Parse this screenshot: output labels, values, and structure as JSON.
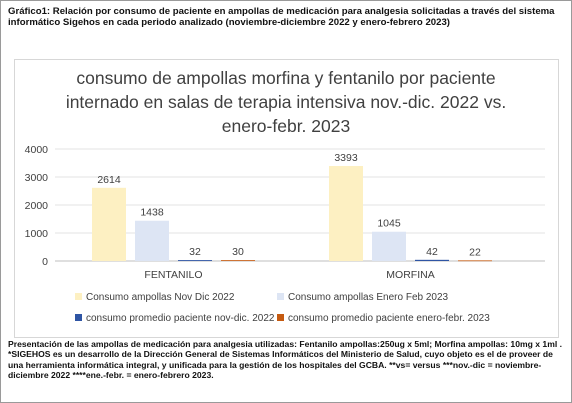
{
  "caption_top": "Gráfico1: Relación por consumo de paciente en ampollas de medicación para analgesia solicitadas a través del sistema informático Sigehos en cada periodo analizado (noviembre-diciembre 2022 y enero-febrero 2023)",
  "caption_bottom": "Presentación de las ampollas de medicación para analgesia utilizadas: Fentanilo ampollas:250ug x 5ml; Morfina ampollas: 10mg x 1ml . *SIGEHOS es un desarrollo de la Dirección General de Sistemas Informáticos del Ministerio de Salud, cuyo objeto es el de proveer de una herramienta informática integral, y unificada para la gestión de los hospitales del GCBA. **vs= versus ***nov.-dic = noviembre-diciembre 2022 ****ene.-febr. = enero-febrero 2023.",
  "colors": {
    "series1": "#fdf0c2",
    "series2": "#dde5f4",
    "series3": "#2f55a4",
    "series4": "#c55a11"
  },
  "chart_data": {
    "type": "bar",
    "title_lines": [
      "consumo de ampollas morfina y fentanilo por paciente",
      "internado en salas de terapia intensiva nov.-dic. 2022 vs.",
      "enero-febr. 2023"
    ],
    "categories": [
      "FENTANILO",
      "MORFINA"
    ],
    "series": [
      {
        "name": "Consumo ampollas Nov Dic 2022",
        "values": [
          2614,
          3393
        ]
      },
      {
        "name": "Consumo ampollas Enero Feb 2023",
        "values": [
          1438,
          1045
        ]
      },
      {
        "name": "consumo promedio paciente nov-dic. 2022",
        "values": [
          32,
          42
        ]
      },
      {
        "name": "consumo promedio paciente enero-febr. 2023",
        "values": [
          30,
          22
        ]
      }
    ],
    "ylim": [
      0,
      4000
    ],
    "yticks": [
      0,
      1000,
      2000,
      3000,
      4000
    ],
    "grid": true,
    "legend_position": "bottom"
  }
}
